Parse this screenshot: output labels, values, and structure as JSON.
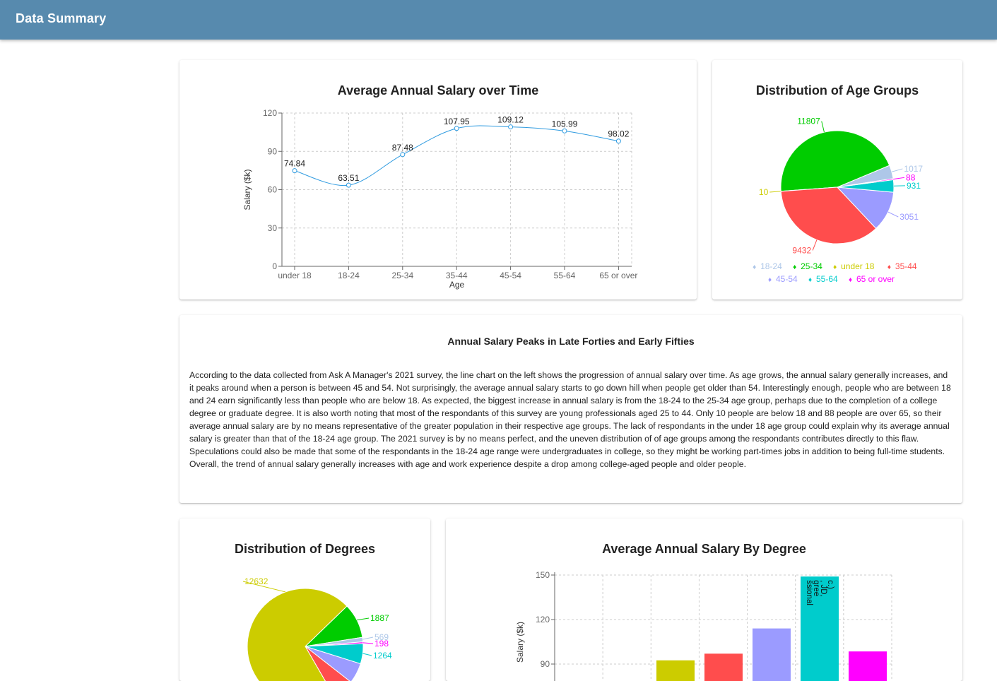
{
  "app": {
    "title": "Data Summary"
  },
  "colors": {
    "appbar": "#578aae",
    "line": "#2f9be0",
    "age_18_24": "#aec7e8",
    "age_25_34": "#00cc00",
    "age_under_18": "#cccc00",
    "age_35_44": "#ff4d4d",
    "age_45_54": "#9b9bff",
    "age_55_64": "#00cccc",
    "age_65_or_over": "#ff00ff"
  },
  "salary_chart": {
    "title": "Average Annual Salary over Time",
    "chart_data": {
      "type": "line",
      "title": "Average Annual Salary over Time",
      "xlabel": "Age",
      "ylabel": "Salary ($k)",
      "categories": [
        "under 18",
        "18-24",
        "25-34",
        "35-44",
        "45-54",
        "55-64",
        "65 or over"
      ],
      "values": [
        74.84,
        63.51,
        87.48,
        107.95,
        109.12,
        105.99,
        98.02
      ],
      "value_labels": [
        "74.84",
        "63.51",
        "87.48",
        "107.95",
        "109.12",
        "105.99",
        "98.02"
      ],
      "ylim": [
        0,
        120
      ],
      "yticks": [
        "0",
        "30",
        "60",
        "90",
        "120"
      ],
      "grid": true,
      "curve": "smooth"
    }
  },
  "age_chart": {
    "title": "Distribution of Age Groups",
    "chart_data": {
      "type": "pie",
      "title": "Distribution of Age Groups",
      "slices": [
        {
          "label": "18-24",
          "value": 1017,
          "color": "#aec7e8",
          "text": "1017"
        },
        {
          "label": "25-34",
          "value": 11807,
          "color": "#00cc00",
          "text": "11807"
        },
        {
          "label": "under 18",
          "value": 10,
          "color": "#cccc00",
          "text": "10"
        },
        {
          "label": "35-44",
          "value": 9432,
          "color": "#ff4d4d",
          "text": "9432"
        },
        {
          "label": "45-54",
          "value": 3051,
          "color": "#9b9bff",
          "text": "3051"
        },
        {
          "label": "55-64",
          "value": 931,
          "color": "#00cccc",
          "text": "931"
        },
        {
          "label": "65 or over",
          "value": 88,
          "color": "#ff00ff",
          "text": "88"
        }
      ],
      "legend": [
        "18-24",
        "25-34",
        "under 18",
        "35-44",
        "45-54",
        "55-64",
        "65 or over"
      ],
      "legend_position": "bottom"
    }
  },
  "summary": {
    "title": "Annual Salary Peaks in Late Forties and Early Fifties",
    "body": "According to the data collected from Ask A Manager's 2021 survey, the line chart on the left shows the progression of annual salary over time. As age grows, the annual salary generally increases, and it peaks around when a person is between 45 and 54. Not surprisingly, the average annual salary starts to go down hill when people get older than 54. Interestingly enough, people who are between 18 and 24 earn significantly less than people who are below 18. As expected, the biggest increase in annual salary is from the 18-24 to the 25-34 age group, perhaps due to the completion of a college degree or graduate degree. It is also worth noting that most of the respondants of this survey are young professionals aged 25 to 44. Only 10 people are below 18 and 88 people are over 65, so their average annual salary are by no means representative of the greater population in their respective age groups. The lack of respondants in the under 18 age group could explain why its average annual salary is greater than that of the 18-24 age group. The 2021 survey is by no means perfect, and the uneven distribution of of age groups among the respondants contributes directly to this flaw. Speculations could also be made that some of the respondants in the 18-24 age range were undergraduates in college, so they might be working part-times jobs in addition to being full-time students. Overall, the trend of annual salary generally increases with age and work experience despite a drop among college-aged people and older people."
  },
  "degree_chart": {
    "title": "Distribution of Degrees",
    "chart_data": {
      "type": "pie",
      "title": "Distribution of Degrees",
      "visible_labels": [
        {
          "text": "12632",
          "color": "#cccc00"
        },
        {
          "text": "1887",
          "color": "#00cc00"
        },
        {
          "text": "569",
          "color": "#aec7e8"
        },
        {
          "text": "198",
          "color": "#ff00ff"
        },
        {
          "text": "1264",
          "color": "#00cccc"
        }
      ]
    }
  },
  "degree_salary_chart": {
    "title": "Average Annual Salary By Degree",
    "chart_data": {
      "type": "bar",
      "title": "Average Annual Salary By Degree",
      "ylabel": "Salary ($k)",
      "yticks": [
        "150",
        "120",
        "90"
      ],
      "ylim_visible": [
        87,
        150
      ],
      "bars": [
        {
          "value": null,
          "color": "#aec7e8"
        },
        {
          "value": 92.5,
          "color": "#cccc00"
        },
        {
          "value": 97,
          "color": "#ff4d4d"
        },
        {
          "value": 114,
          "color": "#9b9bff"
        },
        {
          "value": 149,
          "color": "#00cccc",
          "label_lines": [
            "ssional",
            "gree",
            ", JD,",
            "c.)"
          ]
        },
        {
          "value": 98.5,
          "color": "#ff00ff"
        }
      ],
      "grid": true
    }
  }
}
